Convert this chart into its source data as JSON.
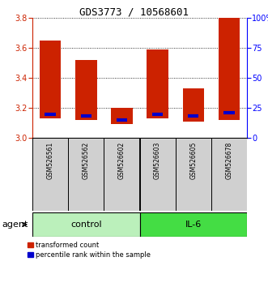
{
  "title": "GDS3773 / 10568601",
  "samples": [
    "GSM526561",
    "GSM526562",
    "GSM526602",
    "GSM526603",
    "GSM526605",
    "GSM526678"
  ],
  "bar_bottoms": [
    3.13,
    3.12,
    3.09,
    3.13,
    3.11,
    3.12
  ],
  "bar_tops": [
    3.65,
    3.52,
    3.2,
    3.59,
    3.33,
    3.8
  ],
  "blue_marks": [
    3.155,
    3.145,
    3.12,
    3.155,
    3.145,
    3.17
  ],
  "ylim": [
    3.0,
    3.8
  ],
  "yticks_left": [
    3.0,
    3.2,
    3.4,
    3.6,
    3.8
  ],
  "yticks_right": [
    0,
    25,
    50,
    75,
    100
  ],
  "ytick_labels_right": [
    "0",
    "25",
    "50",
    "75",
    "100%"
  ],
  "groups": [
    {
      "label": "control",
      "indices": [
        0,
        1,
        2
      ],
      "color": "#bbf0bb"
    },
    {
      "label": "IL-6",
      "indices": [
        3,
        4,
        5
      ],
      "color": "#44dd44"
    }
  ],
  "bar_color": "#cc2200",
  "blue_color": "#0000cc",
  "agent_label": "agent",
  "legend_items": [
    {
      "label": "transformed count",
      "color": "#cc2200"
    },
    {
      "label": "percentile rank within the sample",
      "color": "#0000cc"
    }
  ]
}
